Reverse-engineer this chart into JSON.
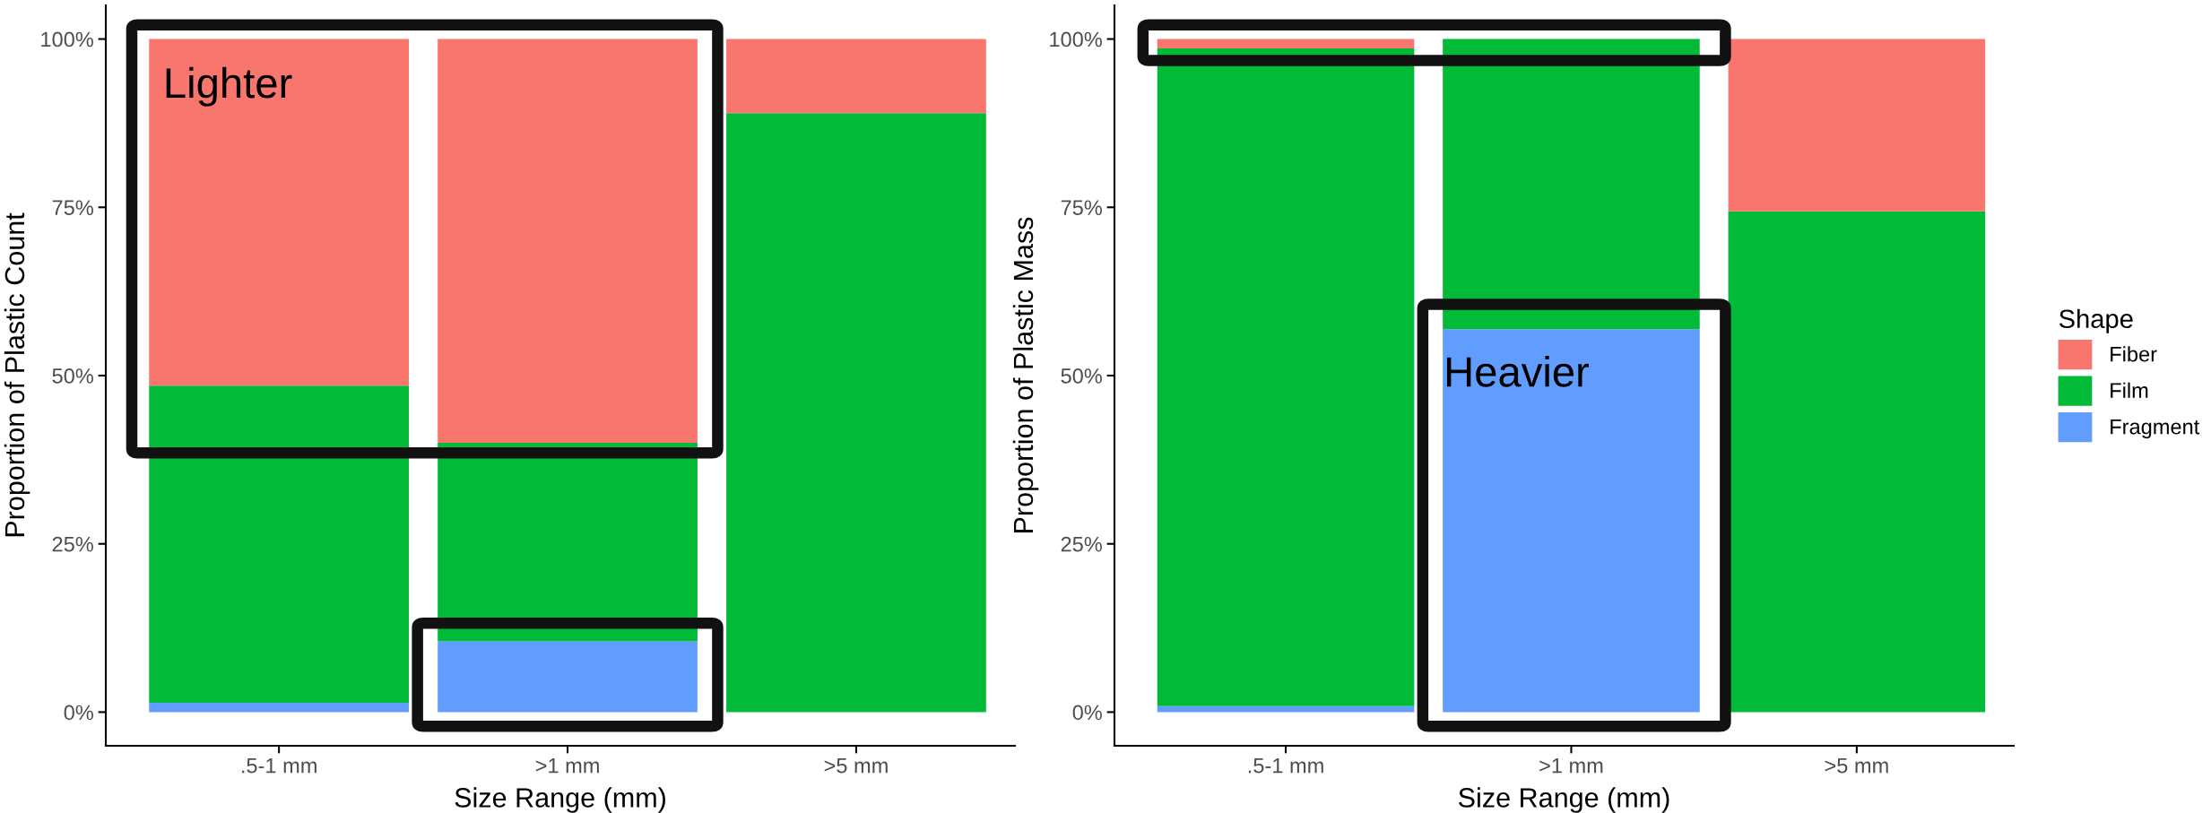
{
  "chart_data": [
    {
      "type": "bar",
      "stacked": true,
      "xlabel": "Size Range (mm)",
      "ylabel": "Proportion of Plastic Count",
      "categories": [
        ".5-1 mm",
        ">1 mm",
        ">5 mm"
      ],
      "ylim": [
        -5,
        105
      ],
      "yticks": [
        {
          "value": 0,
          "label": "0%"
        },
        {
          "value": 25,
          "label": "25%"
        },
        {
          "value": 50,
          "label": "50%"
        },
        {
          "value": 75,
          "label": "75%"
        },
        {
          "value": 100,
          "label": "100%"
        }
      ],
      "grid": false,
      "legend": false,
      "series": [
        {
          "color": "#619cff",
          "values": [
            1.4,
            10.5,
            0
          ]
        },
        {
          "color": "#00ba38",
          "values": [
            47.1,
            29.5,
            89
          ]
        },
        {
          "color": "#f8766d",
          "values": [
            51.5,
            60.0,
            11
          ]
        }
      ],
      "annotations": [
        "Lighter"
      ]
    },
    {
      "type": "bar",
      "stacked": true,
      "xlabel": "Size Range (mm)",
      "ylabel": "Proportion of Plastic Mass",
      "categories": [
        ".5-1 mm",
        ">1 mm",
        ">5 mm"
      ],
      "ylim": [
        -5,
        105
      ],
      "yticks": [
        {
          "value": 0,
          "label": "0%"
        },
        {
          "value": 25,
          "label": "25%"
        },
        {
          "value": 50,
          "label": "50%"
        },
        {
          "value": 75,
          "label": "75%"
        },
        {
          "value": 100,
          "label": "100%"
        }
      ],
      "grid": false,
      "legend": "right",
      "legend_title": "Shape",
      "series": [
        {
          "name": "Fragment",
          "color": "#619cff",
          "values": [
            0.9,
            56.9,
            0
          ]
        },
        {
          "name": "Film",
          "color": "#00ba38",
          "values": [
            97.7,
            43.1,
            74.4
          ]
        },
        {
          "name": "Fiber",
          "color": "#f8766d",
          "values": [
            1.4,
            0,
            25.6
          ]
        }
      ],
      "annotations": [
        "Heavier"
      ]
    }
  ]
}
